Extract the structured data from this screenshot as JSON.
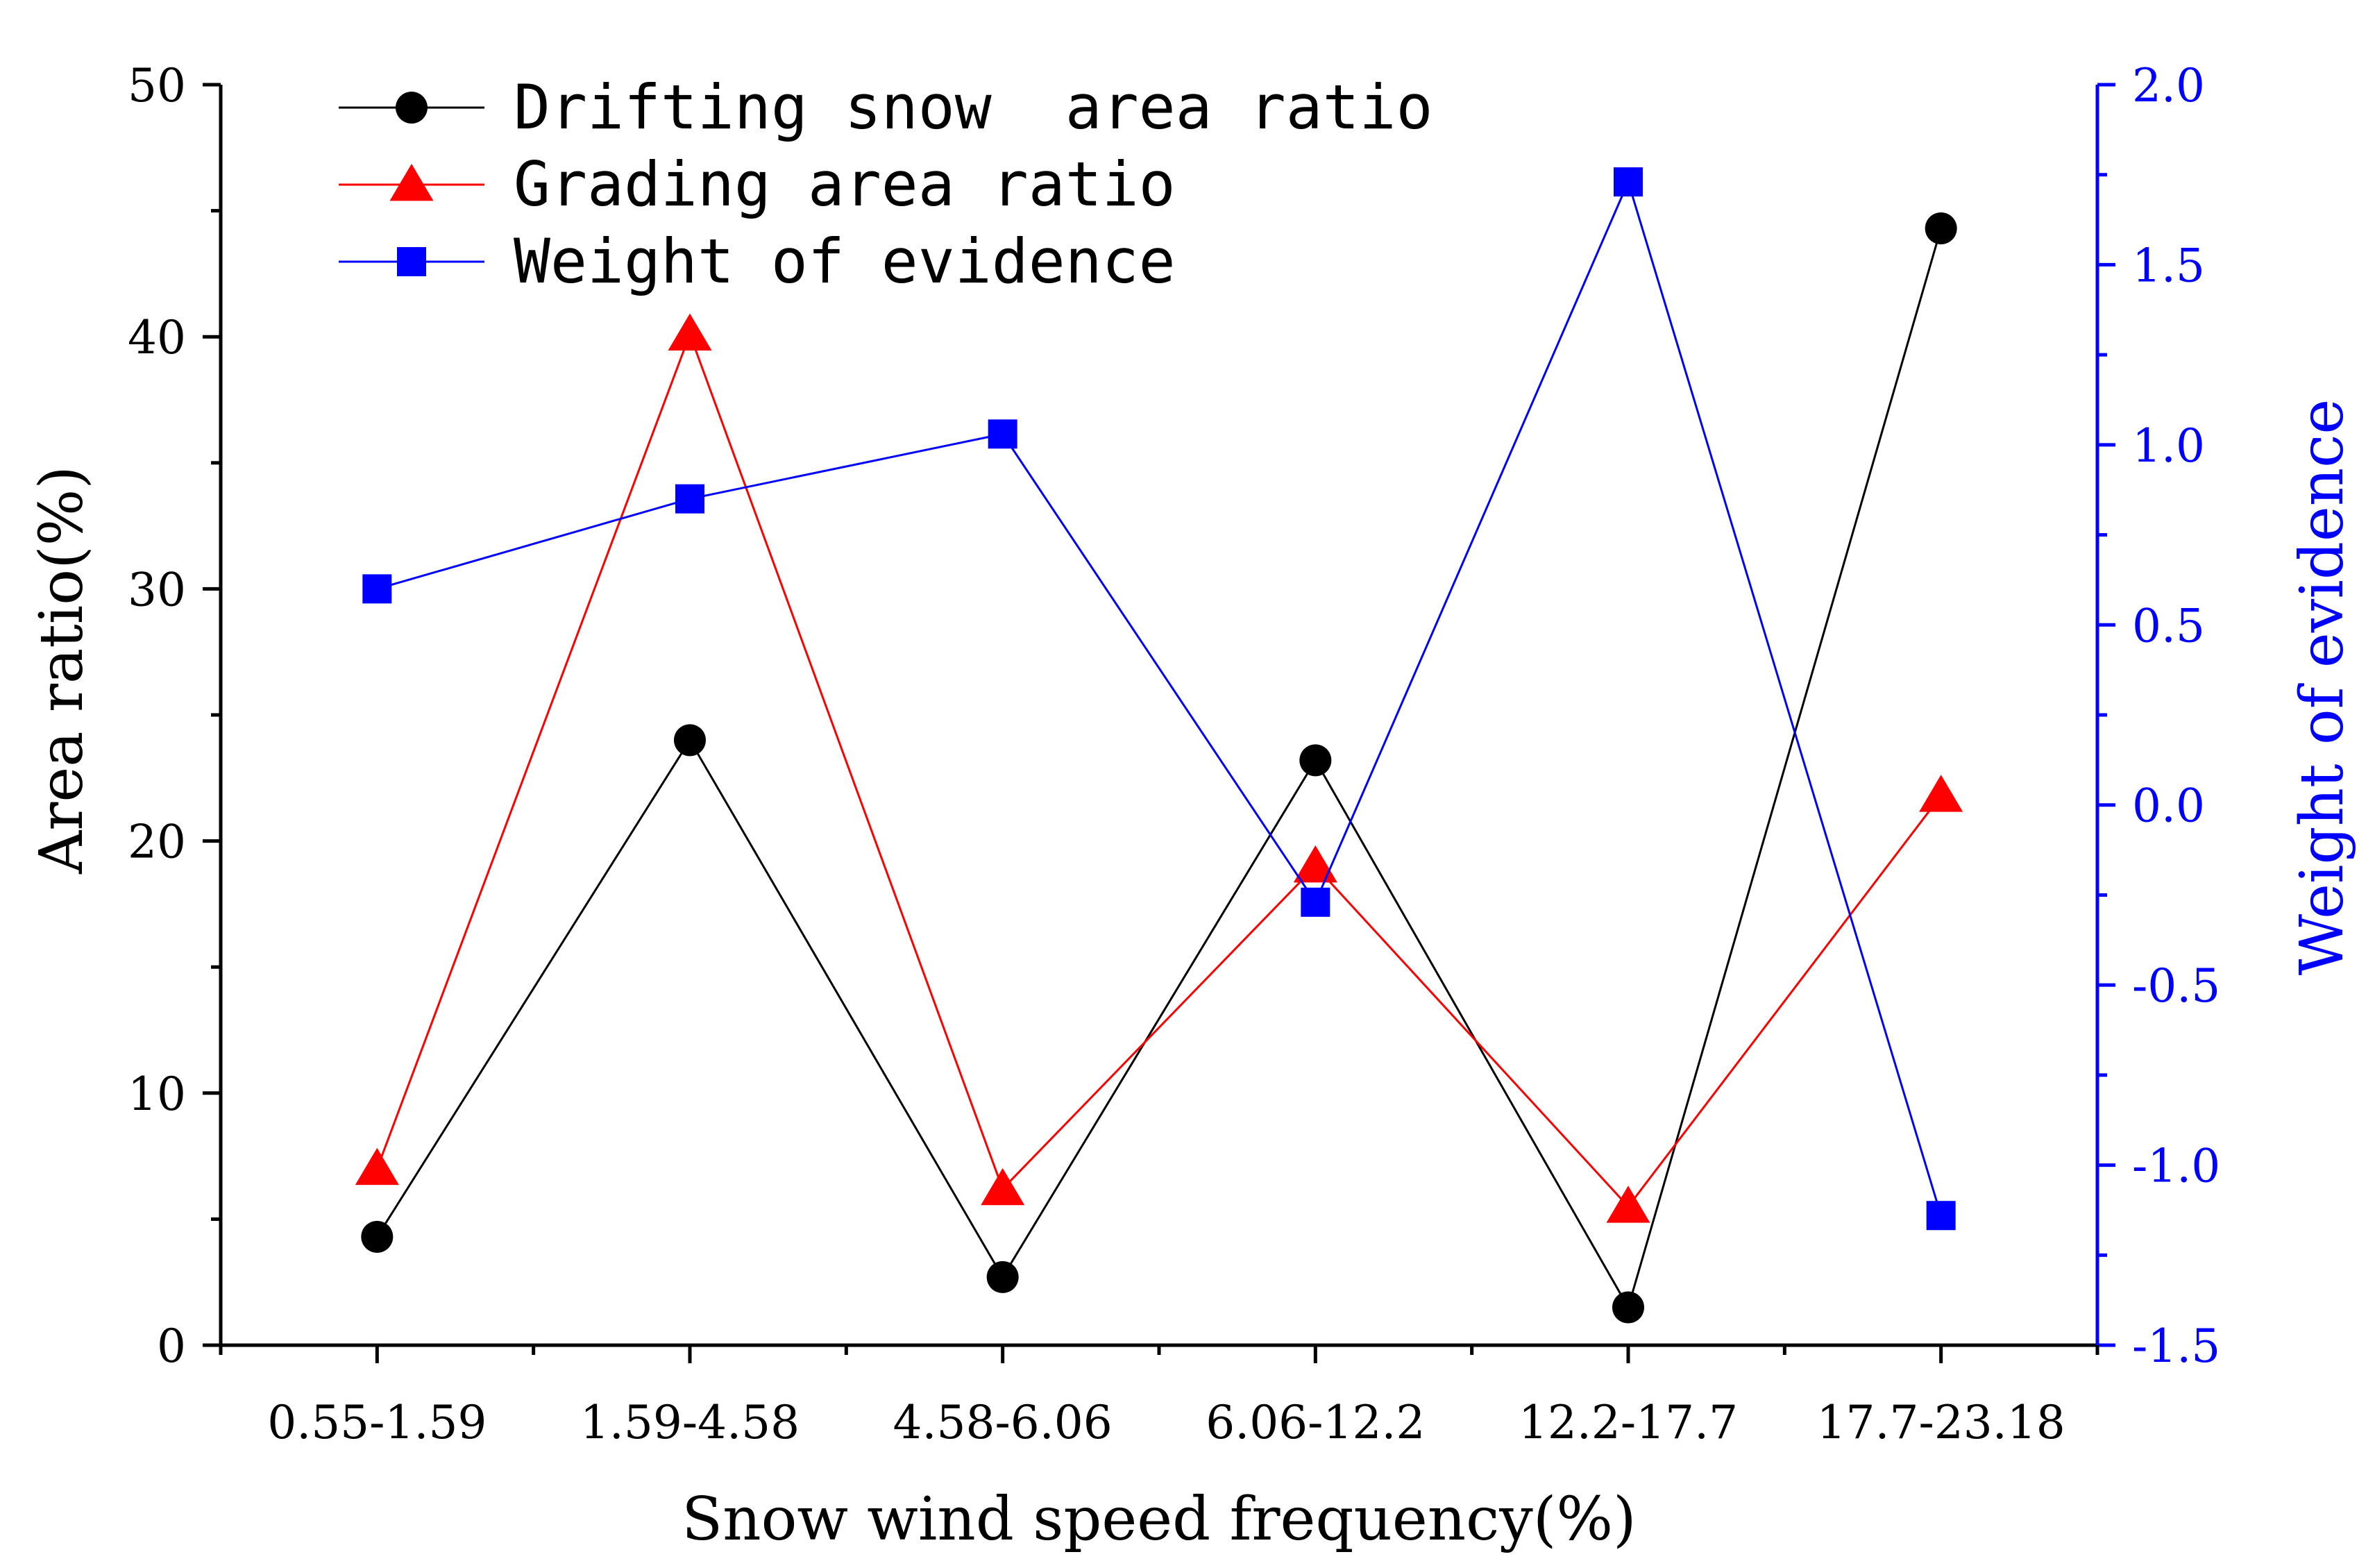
{
  "chart_data": {
    "type": "line",
    "title": "",
    "xlabel": "Snow wind speed frequency(%)",
    "ylabel": "Area ratio(%)",
    "y2label": "Weight of evidence",
    "categories": [
      "0.55-1.59",
      "1.59-4.58",
      "4.58-6.06",
      "6.06-12.2",
      "12.2-17.7",
      "17.7-23.18"
    ],
    "ylim": [
      0,
      50
    ],
    "y2lim": [
      -1.5,
      2.0
    ],
    "y_ticks": [
      "0",
      "10",
      "20",
      "30",
      "40",
      "50"
    ],
    "y2_ticks": [
      "-1.5",
      "-1.0",
      "-0.5",
      "0.0",
      "0.5",
      "1.0",
      "1.5",
      "2.0"
    ],
    "legend_position": "top-left",
    "series": [
      {
        "name": "Drifting snow  area ratio",
        "axis": "left",
        "marker": "circle",
        "color": "#000000",
        "values": [
          4.3,
          24.0,
          2.7,
          23.2,
          1.5,
          44.3
        ]
      },
      {
        "name": "Grading area ratio",
        "axis": "left",
        "marker": "triangle",
        "color": "#ff0000",
        "values": [
          7.0,
          40.1,
          6.2,
          19.0,
          5.5,
          21.8
        ]
      },
      {
        "name": "Weight of evidence",
        "axis": "right",
        "marker": "square",
        "color": "#0000ff",
        "values": [
          0.6,
          0.85,
          1.03,
          -0.27,
          1.73,
          -1.14
        ]
      }
    ],
    "axis_colors": {
      "left": "#000000",
      "right": "#0000ff",
      "text": "#000000"
    }
  }
}
